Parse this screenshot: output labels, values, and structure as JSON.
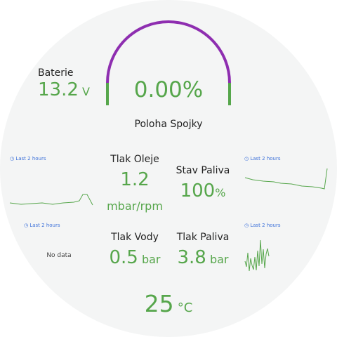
{
  "gauge": {
    "value": "0.00",
    "unit": "%",
    "label": "Poloha Spojky"
  },
  "battery": {
    "label": "Baterie",
    "value": 13.2,
    "unit": "V"
  },
  "oil_pressure": {
    "label": "Tlak Oleje",
    "value": 1.2,
    "unit": "mbar/rpm"
  },
  "fuel_level": {
    "label": "Stav Paliva",
    "value": 100,
    "unit": "%"
  },
  "water_pressure": {
    "label": "Tlak Vody",
    "value": 0.5,
    "unit": "bar"
  },
  "fuel_pressure": {
    "label": "Tlak Paliva",
    "value": 3.8,
    "unit": "bar"
  },
  "temperature": {
    "value": 25,
    "unit": "°C"
  },
  "sparklines": [
    {
      "time_range": "Last 2 hours"
    },
    {
      "time_range": "Last 2 hours"
    },
    {
      "time_range": "Last 2 hours",
      "message": "No data"
    },
    {
      "time_range": "Last 2 hours"
    }
  ]
}
